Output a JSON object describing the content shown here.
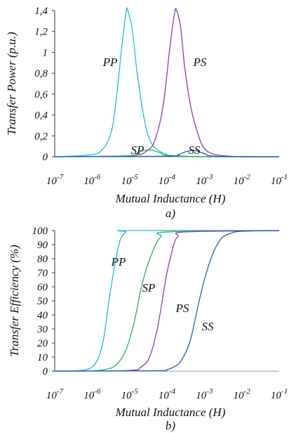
{
  "chart_data": [
    {
      "type": "line",
      "panel_label": "a)",
      "xlabel": "Mutual Inductance (H)",
      "ylabel": "Transfer Power (p.u.)",
      "x_scale": "log",
      "xlim": [
        1e-07,
        0.1
      ],
      "ylim": [
        0,
        1.4
      ],
      "x_ticks": [
        {
          "base": "10",
          "exp": "-7"
        },
        {
          "base": "10",
          "exp": "-6"
        },
        {
          "base": "10",
          "exp": "-5"
        },
        {
          "base": "10",
          "exp": "-4"
        },
        {
          "base": "10",
          "exp": "-3"
        },
        {
          "base": "10",
          "exp": "-2"
        },
        {
          "base": "10",
          "exp": "-1"
        }
      ],
      "y_ticks": [
        "0",
        "0,2",
        "0,4",
        "0,6",
        "0,8",
        "1",
        "1,2",
        "1,4"
      ],
      "y_tick_values": [
        0,
        0.2,
        0.4,
        0.6,
        0.8,
        1.0,
        1.2,
        1.4
      ],
      "series": [
        {
          "name": "PP",
          "color": "#29b6d8",
          "x": [
            1e-07,
            1e-06,
            2e-06,
            3e-06,
            4e-06,
            6e-06,
            8e-06,
            9e-06,
            1.2e-05,
            1.6e-05,
            2.5e-05,
            4e-05,
            0.0001,
            0.0003,
            0.001,
            0.1
          ],
          "y": [
            0,
            0.02,
            0.08,
            0.2,
            0.42,
            1.0,
            1.38,
            1.4,
            1.2,
            0.8,
            0.35,
            0.12,
            0.02,
            0.005,
            0,
            0
          ]
        },
        {
          "name": "PS",
          "color": "#8a3fb0",
          "x": [
            1e-07,
            1e-05,
            3e-05,
            5e-05,
            8e-05,
            0.00012,
            0.00016,
            0.00018,
            0.00023,
            0.0003,
            0.00045,
            0.0007,
            0.001,
            0.002,
            0.01,
            0.1
          ],
          "y": [
            0,
            0.01,
            0.06,
            0.18,
            0.5,
            1.05,
            1.38,
            1.4,
            1.25,
            0.85,
            0.45,
            0.2,
            0.08,
            0.02,
            0,
            0
          ]
        },
        {
          "name": "SP",
          "color": "#2bb055",
          "x": [
            1e-07,
            1e-05,
            1.5e-05,
            2.2e-05,
            3e-05,
            3.5e-05,
            4.5e-05,
            7e-05,
            0.0001,
            0.001,
            0.1
          ],
          "y": [
            0,
            0.01,
            0.03,
            0.055,
            0.065,
            0.065,
            0.058,
            0.035,
            0.015,
            0,
            0
          ]
        },
        {
          "name": "SS",
          "color": "#1f5fb4",
          "x": [
            1e-07,
            0.0001,
            0.0002,
            0.0003,
            0.00045,
            0.00055,
            0.0007,
            0.001,
            0.002,
            0.1
          ],
          "y": [
            0,
            0.005,
            0.02,
            0.045,
            0.06,
            0.06,
            0.05,
            0.03,
            0.005,
            0
          ]
        }
      ]
    },
    {
      "type": "line",
      "panel_label": "b)",
      "xlabel": "Mutual Inductance (H)",
      "ylabel": "Transfer Efficiency (%)",
      "x_scale": "log",
      "xlim": [
        1e-07,
        0.1
      ],
      "ylim": [
        0,
        100
      ],
      "x_ticks": [
        {
          "base": "10",
          "exp": "-7"
        },
        {
          "base": "10",
          "exp": "-6"
        },
        {
          "base": "10",
          "exp": "-5"
        },
        {
          "base": "10",
          "exp": "-4"
        },
        {
          "base": "10",
          "exp": "-3"
        },
        {
          "base": "10",
          "exp": "-2"
        },
        {
          "base": "10",
          "exp": "-1"
        }
      ],
      "y_ticks": [
        "0",
        "10",
        "20",
        "30",
        "40",
        "50",
        "60",
        "70",
        "80",
        "90",
        "100"
      ],
      "y_tick_values": [
        0,
        10,
        20,
        30,
        40,
        50,
        60,
        70,
        80,
        90,
        100
      ],
      "series": [
        {
          "name": "PP",
          "color": "#29b6d8",
          "x": [
            1e-07,
            5e-07,
            1e-06,
            1.5e-06,
            2e-06,
            2.5e-06,
            3e-06,
            4e-06,
            5e-06,
            6e-06,
            8e-06,
            1e-05,
            0.1
          ],
          "y": [
            0,
            0.5,
            3,
            10,
            22,
            40,
            55,
            75,
            88,
            95,
            99,
            100,
            100
          ]
        },
        {
          "name": "SP",
          "color": "#2bb055",
          "x": [
            1e-07,
            1e-06,
            3e-06,
            5e-06,
            8e-06,
            1.2e-05,
            1.6e-05,
            2e-05,
            3e-05,
            5e-05,
            7e-05,
            0.0001,
            0.1
          ],
          "y": [
            0,
            0.2,
            2,
            6,
            15,
            30,
            45,
            58,
            75,
            90,
            96,
            99,
            100
          ]
        },
        {
          "name": "PS",
          "color": "#8a3fb0",
          "x": [
            1e-07,
            1e-05,
            2e-05,
            3e-05,
            4e-05,
            5e-05,
            6e-05,
            8e-05,
            0.0001,
            0.00013,
            0.00016,
            0.0002,
            0.0003,
            0.1
          ],
          "y": [
            0,
            0.5,
            3,
            7,
            15,
            25,
            35,
            55,
            70,
            83,
            92,
            96,
            99,
            100
          ]
        },
        {
          "name": "SS",
          "color": "#1f5fb4",
          "x": [
            1e-07,
            5e-05,
            0.0001,
            0.0002,
            0.0003,
            0.0004,
            0.0005,
            0.0007,
            0.001,
            0.0015,
            0.002,
            0.003,
            0.005,
            0.01,
            0.1
          ],
          "y": [
            0,
            0.3,
            1,
            5,
            12,
            20,
            30,
            48,
            65,
            80,
            88,
            95,
            98,
            99.5,
            100
          ]
        }
      ]
    }
  ]
}
